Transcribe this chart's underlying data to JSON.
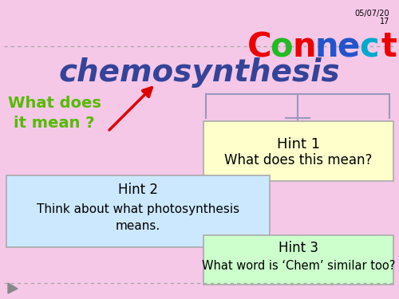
{
  "bg_color": "#f5c8e8",
  "connect_letters": [
    "C",
    "o",
    "n",
    "n",
    "e",
    "c",
    "t"
  ],
  "connect_colors": [
    "#ee0000",
    "#22bb22",
    "#ee0000",
    "#2255cc",
    "#2255cc",
    "#00aacc",
    "#ee0000"
  ],
  "date_line1": "05/07/20",
  "date_line2": "17",
  "chemo_text": "chemosynthesis",
  "chemo_color": "#334499",
  "what_does_text": "What does\nit mean ?",
  "what_does_color": "#55bb00",
  "hint1_line1": "Hint 1",
  "hint1_line2": "What does this mean?",
  "hint1_bg": "#ffffcc",
  "hint2_line1": "Hint 2",
  "hint2_line2": "Think about what photosynthesis",
  "hint2_line3": "means.",
  "hint2_bg": "#cce8ff",
  "hint3_line1": "Hint 3",
  "hint3_line2": "What word is ‘Chem’ similar too?",
  "hint3_bg": "#ccffcc",
  "dotted_line_color": "#aaaaaa",
  "arrow_color": "#dd0000",
  "brace_color": "#9999bb",
  "box_edge_color": "#aaaaaa"
}
